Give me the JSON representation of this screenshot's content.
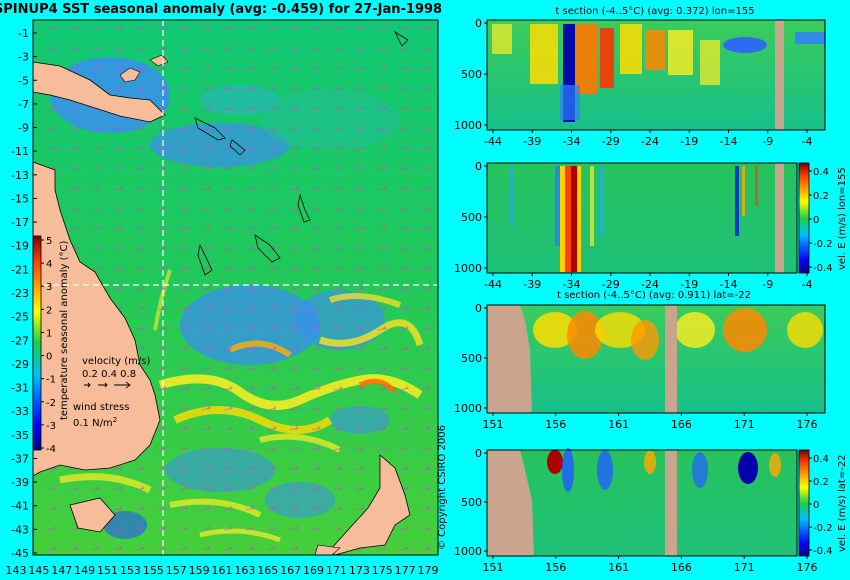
{
  "main_title": "SPINUP4 SST seasonal anomaly (avg: -0.459) for 27-Jan-1998",
  "map": {
    "lat_ticks": [
      "-1",
      "-3",
      "-5",
      "-7",
      "-9",
      "-11",
      "-13",
      "-15",
      "-17",
      "-19",
      "-21",
      "-23",
      "-25",
      "-27",
      "-29",
      "-31",
      "-33",
      "-35",
      "-37",
      "-39",
      "-41",
      "-43",
      "-45"
    ],
    "lon_ticks": [
      "143",
      "145",
      "147",
      "149",
      "151",
      "153",
      "155",
      "157",
      "159",
      "161",
      "163",
      "165",
      "167",
      "169",
      "171",
      "173",
      "175",
      "177",
      "179"
    ],
    "colorbar_ticks": [
      "5",
      "4",
      "3",
      "2",
      "1",
      "0",
      "-1",
      "-2",
      "-3",
      "-4"
    ],
    "colorbar_label": "temperature seasonal anomaly (°C)",
    "velocity_label": "velocity (m/s)",
    "velocity_values": "0.2 0.4 0.8",
    "wind_label": "wind stress",
    "wind_value": "0.1 N/m",
    "wind_exp": "2",
    "copyright": "© Copyright CSIRO 2006",
    "section_lon": 155,
    "section_lat": -22
  },
  "chart_data": [
    {
      "type": "heatmap",
      "panel": "sst-anomaly-map",
      "title": "SPINUP4 SST seasonal anomaly (avg: -0.459) for 27-Jan-1998",
      "x_ticks": [
        143,
        145,
        147,
        149,
        151,
        153,
        155,
        157,
        159,
        161,
        163,
        165,
        167,
        169,
        171,
        173,
        175,
        177,
        179
      ],
      "y_ticks": [
        -1,
        -3,
        -5,
        -7,
        -9,
        -11,
        -13,
        -15,
        -17,
        -19,
        -21,
        -23,
        -25,
        -27,
        -29,
        -31,
        -33,
        -35,
        -37,
        -39,
        -41,
        -43,
        -45
      ],
      "colorbar": {
        "label": "temperature seasonal anomaly (°C)",
        "range": [
          -4,
          5
        ]
      }
    },
    {
      "type": "heatmap",
      "panel": "t-section-lon",
      "title": "t section (-4..5°C) (avg: 0.372) lon=155",
      "x_ticks": [
        "-44",
        "-39",
        "-34",
        "-29",
        "-24",
        "-19",
        "-14",
        "-9",
        "-4"
      ],
      "y_ticks": [
        "0",
        "500",
        "1000"
      ]
    },
    {
      "type": "heatmap",
      "panel": "vel-section-lon",
      "title": "",
      "x_ticks": [
        "-44",
        "-39",
        "-34",
        "-29",
        "-24",
        "-19",
        "-14",
        "-9",
        "-4"
      ],
      "y_ticks": [
        "0",
        "500",
        "1000"
      ],
      "colorbar": {
        "label": "vel. E (m/s) lon=155",
        "ticks": [
          "0.4",
          "0.2",
          "0",
          "-0.2",
          "-0.4"
        ]
      }
    },
    {
      "type": "heatmap",
      "panel": "t-section-lat",
      "title": "t section (-4..5°C) (avg: 0.911) lat=-22",
      "x_ticks": [
        "151",
        "156",
        "161",
        "166",
        "171",
        "176"
      ],
      "y_ticks": [
        "0",
        "500",
        "1000"
      ]
    },
    {
      "type": "heatmap",
      "panel": "vel-section-lat",
      "title": "",
      "x_ticks": [
        "151",
        "156",
        "161",
        "166",
        "171",
        "176"
      ],
      "y_ticks": [
        "0",
        "500",
        "1000"
      ],
      "colorbar": {
        "label": "vel. E (m/s) lat=-22",
        "ticks": [
          "0.4",
          "0.2",
          "0",
          "-0.2",
          "-0.4"
        ]
      }
    }
  ]
}
